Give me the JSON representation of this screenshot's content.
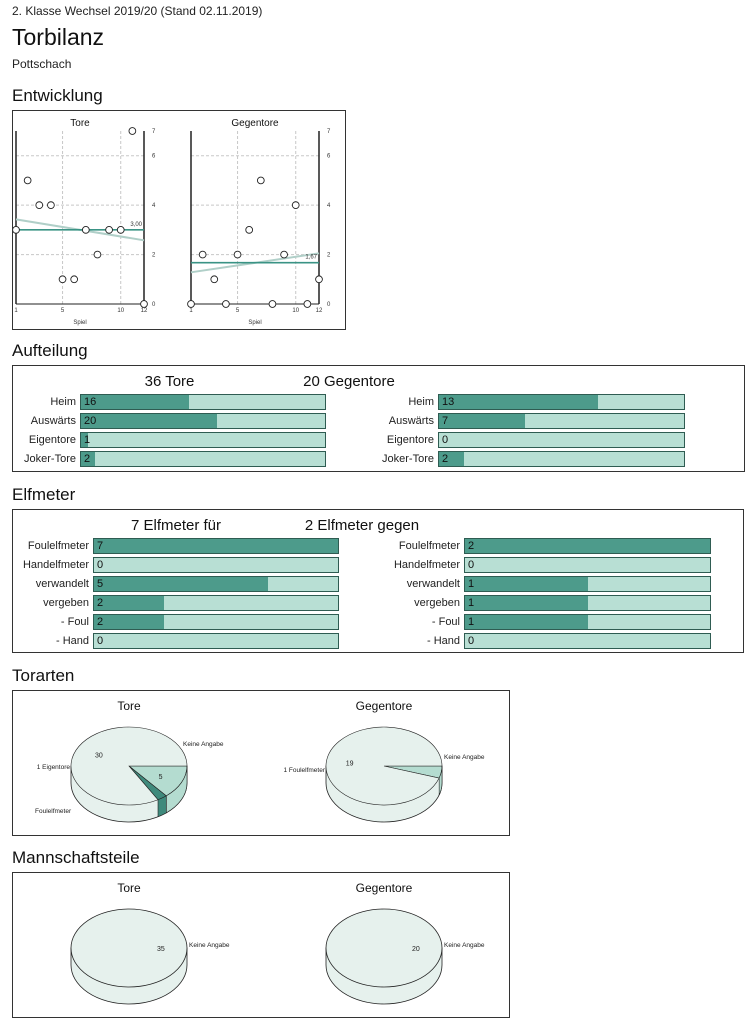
{
  "header": {
    "league": "2. Klasse Wechsel 2019/20 (Stand 02.11.2019)",
    "title": "Torbilanz",
    "team": "Pottschach"
  },
  "sections": {
    "entwicklung": "Entwicklung",
    "aufteilung": "Aufteilung",
    "elfmeter": "Elfmeter",
    "torarten": "Torarten",
    "mannschaftsteile": "Mannschaftsteile"
  },
  "colors": {
    "fill": "#4d9b8b",
    "bar_bg": "#b8dfd4",
    "trend": "#3a9385",
    "trend_light": "#b0cfc8",
    "pie_main": "#e6f1ed"
  },
  "chart_data": [
    {
      "type": "scatter",
      "title": "Tore",
      "xlabel": "Spiel",
      "x": [
        1,
        2,
        3,
        4,
        5,
        6,
        7,
        8,
        9,
        10,
        11,
        12
      ],
      "y": [
        3,
        5,
        4,
        4,
        1,
        1,
        3,
        2,
        3,
        3,
        7,
        0
      ],
      "xticks": [
        "1",
        "5",
        "10",
        "12"
      ],
      "yticks": [
        "0",
        "2",
        "4",
        "6",
        "7"
      ],
      "average": 3.0,
      "average_label": "3,00",
      "ylim": [
        0,
        7
      ]
    },
    {
      "type": "scatter",
      "title": "Gegentore",
      "xlabel": "Spiel",
      "x": [
        1,
        2,
        3,
        4,
        5,
        6,
        7,
        8,
        9,
        10,
        11,
        12
      ],
      "y": [
        0,
        2,
        1,
        0,
        2,
        3,
        5,
        0,
        2,
        4,
        0,
        1
      ],
      "xticks": [
        "1",
        "5",
        "10",
        "12"
      ],
      "yticks": [
        "0",
        "2",
        "4",
        "6",
        "7"
      ],
      "average": 1.67,
      "average_label": "1,67",
      "ylim": [
        0,
        7
      ]
    },
    {
      "type": "bar",
      "title": "36 Tore",
      "total": 36,
      "categories": [
        "Heim",
        "Auswärts",
        "Eigentore",
        "Joker-Tore"
      ],
      "values": [
        16,
        20,
        1,
        2
      ]
    },
    {
      "type": "bar",
      "title": "20 Gegentore",
      "total": 20,
      "categories": [
        "Heim",
        "Auswärts",
        "Eigentore",
        "Joker-Tore"
      ],
      "values": [
        13,
        7,
        0,
        2
      ]
    },
    {
      "type": "bar",
      "title": "7 Elfmeter für",
      "total": 7,
      "categories": [
        "Foulelfmeter",
        "Handelfmeter",
        "verwandelt",
        "vergeben",
        "- Foul",
        "- Hand"
      ],
      "values": [
        7,
        0,
        5,
        2,
        2,
        0
      ]
    },
    {
      "type": "bar",
      "title": "2 Elfmeter gegen",
      "total": 2,
      "categories": [
        "Foulelfmeter",
        "Handelfmeter",
        "verwandelt",
        "vergeben",
        "- Foul",
        "- Hand"
      ],
      "values": [
        2,
        0,
        1,
        1,
        1,
        0
      ]
    },
    {
      "type": "pie",
      "title": "Tore",
      "slices": [
        {
          "label": "Keine Angabe",
          "value": 30,
          "color": "#e6f1ed"
        },
        {
          "label": "Foulelfmeter",
          "value": 5,
          "color": "#b4dcd0"
        },
        {
          "label": "Eigentore",
          "value": 1,
          "color": "#3f8a7c"
        }
      ],
      "outside_labels": [
        "Keine Angabe",
        "1 Eigentore",
        "Foulelfmeter"
      ]
    },
    {
      "type": "pie",
      "title": "Gegentore",
      "slices": [
        {
          "label": "Keine Angabe",
          "value": 19,
          "color": "#e6f1ed"
        },
        {
          "label": "Foulelfmeter",
          "value": 1,
          "color": "#b4dcd0"
        }
      ],
      "outside_labels": [
        "Keine Angabe",
        "1 Foulelfmeter"
      ]
    },
    {
      "type": "pie",
      "title": "Tore",
      "slices": [
        {
          "label": "Keine Angabe",
          "value": 35,
          "color": "#e6f1ed"
        }
      ],
      "outside_labels": [
        "Keine Angabe"
      ]
    },
    {
      "type": "pie",
      "title": "Gegentore",
      "slices": [
        {
          "label": "Keine Angabe",
          "value": 20,
          "color": "#e6f1ed"
        }
      ],
      "outside_labels": [
        "Keine Angabe"
      ]
    }
  ]
}
